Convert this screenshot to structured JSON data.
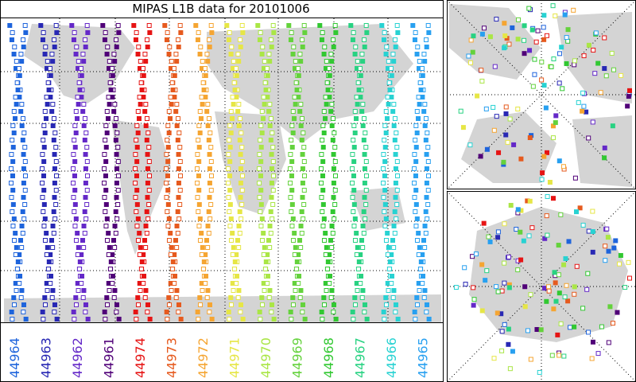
{
  "title": "MIPAS L1B data for 20101006",
  "orbits": [
    {
      "name": "44964",
      "color": "#1e64dc"
    },
    {
      "name": "44963",
      "color": "#2828b4"
    },
    {
      "name": "44962",
      "color": "#6428c8"
    },
    {
      "name": "44961",
      "color": "#500078"
    },
    {
      "name": "44974",
      "color": "#e61414"
    },
    {
      "name": "44973",
      "color": "#e65a1e"
    },
    {
      "name": "44972",
      "color": "#f5a532"
    },
    {
      "name": "44971",
      "color": "#e6e646"
    },
    {
      "name": "44970",
      "color": "#aae646"
    },
    {
      "name": "44969",
      "color": "#64d23c"
    },
    {
      "name": "44968",
      "color": "#32c832"
    },
    {
      "name": "44967",
      "color": "#28d282"
    },
    {
      "name": "44966",
      "color": "#28d2d2"
    },
    {
      "name": "44965",
      "color": "#28a0f0"
    }
  ]
}
